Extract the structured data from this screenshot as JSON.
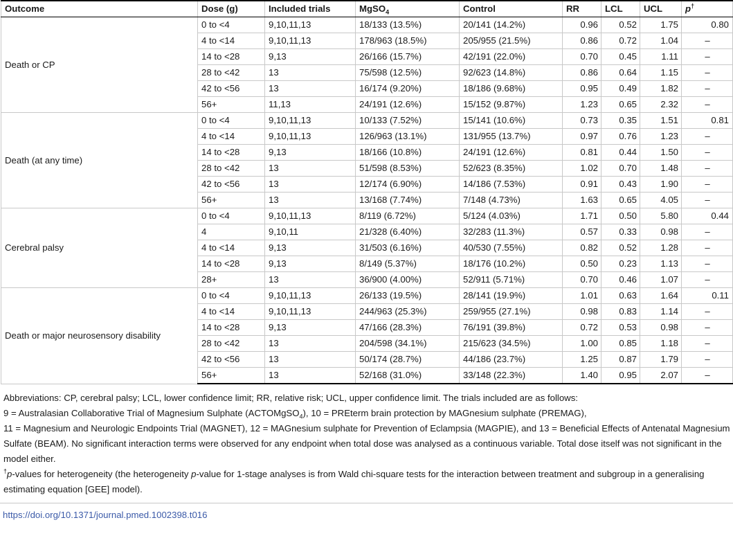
{
  "table": {
    "headers": {
      "outcome": "Outcome",
      "dose": "Dose (g)",
      "trials": "Included trials",
      "mgso4_base": "MgSO",
      "mgso4_sub": "4",
      "control": "Control",
      "rr": "RR",
      "lcl": "LCL",
      "ucl": "UCL",
      "p": "p",
      "p_sup": "†"
    },
    "groups": [
      {
        "outcome": "Death or CP",
        "rows": [
          {
            "dose": "0 to <4",
            "trials": "9,10,11,13",
            "mgso4": "18/133 (13.5%)",
            "control": "20/141 (14.2%)",
            "rr": "0.96",
            "lcl": "0.52",
            "ucl": "1.75",
            "p": "0.80"
          },
          {
            "dose": "4 to <14",
            "trials": "9,10,11,13",
            "mgso4": "178/963 (18.5%)",
            "control": "205/955 (21.5%)",
            "rr": "0.86",
            "lcl": "0.72",
            "ucl": "1.04",
            "p": "–"
          },
          {
            "dose": "14 to <28",
            "trials": "9,13",
            "mgso4": "26/166 (15.7%)",
            "control": "42/191 (22.0%)",
            "rr": "0.70",
            "lcl": "0.45",
            "ucl": "1.11",
            "p": "–"
          },
          {
            "dose": "28 to <42",
            "trials": "13",
            "mgso4": "75/598 (12.5%)",
            "control": "92/623 (14.8%)",
            "rr": "0.86",
            "lcl": "0.64",
            "ucl": "1.15",
            "p": "–"
          },
          {
            "dose": "42 to <56",
            "trials": "13",
            "mgso4": "16/174 (9.20%)",
            "control": "18/186 (9.68%)",
            "rr": "0.95",
            "lcl": "0.49",
            "ucl": "1.82",
            "p": "–"
          },
          {
            "dose": "56+",
            "trials": "11,13",
            "mgso4": "24/191 (12.6%)",
            "control": "15/152 (9.87%)",
            "rr": "1.23",
            "lcl": "0.65",
            "ucl": "2.32",
            "p": "–"
          }
        ]
      },
      {
        "outcome": "Death (at any time)",
        "rows": [
          {
            "dose": "0 to <4",
            "trials": "9,10,11,13",
            "mgso4": "10/133 (7.52%)",
            "control": "15/141 (10.6%)",
            "rr": "0.73",
            "lcl": "0.35",
            "ucl": "1.51",
            "p": "0.81"
          },
          {
            "dose": "4 to <14",
            "trials": "9,10,11,13",
            "mgso4": "126/963 (13.1%)",
            "control": "131/955 (13.7%)",
            "rr": "0.97",
            "lcl": "0.76",
            "ucl": "1.23",
            "p": "–"
          },
          {
            "dose": "14 to <28",
            "trials": "9,13",
            "mgso4": "18/166 (10.8%)",
            "control": "24/191 (12.6%)",
            "rr": "0.81",
            "lcl": "0.44",
            "ucl": "1.50",
            "p": "–"
          },
          {
            "dose": "28 to <42",
            "trials": "13",
            "mgso4": "51/598 (8.53%)",
            "control": "52/623 (8.35%)",
            "rr": "1.02",
            "lcl": "0.70",
            "ucl": "1.48",
            "p": "–"
          },
          {
            "dose": "42 to <56",
            "trials": "13",
            "mgso4": "12/174 (6.90%)",
            "control": "14/186 (7.53%)",
            "rr": "0.91",
            "lcl": "0.43",
            "ucl": "1.90",
            "p": "–"
          },
          {
            "dose": "56+",
            "trials": "13",
            "mgso4": "13/168 (7.74%)",
            "control": "7/148 (4.73%)",
            "rr": "1.63",
            "lcl": "0.65",
            "ucl": "4.05",
            "p": "–"
          }
        ]
      },
      {
        "outcome": "Cerebral palsy",
        "rows": [
          {
            "dose": "0 to <4",
            "trials": "9,10,11,13",
            "mgso4": "8/119 (6.72%)",
            "control": "5/124 (4.03%)",
            "rr": "1.71",
            "lcl": "0.50",
            "ucl": "5.80",
            "p": "0.44"
          },
          {
            "dose": "4",
            "trials": "9,10,11",
            "mgso4": "21/328 (6.40%)",
            "control": "32/283 (11.3%)",
            "rr": "0.57",
            "lcl": "0.33",
            "ucl": "0.98",
            "p": "–"
          },
          {
            "dose": "4 to <14",
            "trials": "9,13",
            "mgso4": "31/503 (6.16%)",
            "control": "40/530 (7.55%)",
            "rr": "0.82",
            "lcl": "0.52",
            "ucl": "1.28",
            "p": "–"
          },
          {
            "dose": "14 to <28",
            "trials": "9,13",
            "mgso4": "8/149 (5.37%)",
            "control": "18/176 (10.2%)",
            "rr": "0.50",
            "lcl": "0.23",
            "ucl": "1.13",
            "p": "–"
          },
          {
            "dose": "28+",
            "trials": "13",
            "mgso4": "36/900 (4.00%)",
            "control": "52/911 (5.71%)",
            "rr": "0.70",
            "lcl": "0.46",
            "ucl": "1.07",
            "p": "–"
          }
        ]
      },
      {
        "outcome": "Death or major neurosensory disability",
        "rows": [
          {
            "dose": "0 to <4",
            "trials": "9,10,11,13",
            "mgso4": "26/133 (19.5%)",
            "control": "28/141 (19.9%)",
            "rr": "1.01",
            "lcl": "0.63",
            "ucl": "1.64",
            "p": "0.11"
          },
          {
            "dose": "4 to <14",
            "trials": "9,10,11,13",
            "mgso4": "244/963 (25.3%)",
            "control": "259/955 (27.1%)",
            "rr": "0.98",
            "lcl": "0.83",
            "ucl": "1.14",
            "p": "–"
          },
          {
            "dose": "14 to <28",
            "trials": "9,13",
            "mgso4": "47/166 (28.3%)",
            "control": "76/191 (39.8%)",
            "rr": "0.72",
            "lcl": "0.53",
            "ucl": "0.98",
            "p": "–"
          },
          {
            "dose": "28 to <42",
            "trials": "13",
            "mgso4": "204/598 (34.1%)",
            "control": "215/623 (34.5%)",
            "rr": "1.00",
            "lcl": "0.85",
            "ucl": "1.18",
            "p": "–"
          },
          {
            "dose": "42 to <56",
            "trials": "13",
            "mgso4": "50/174 (28.7%)",
            "control": "44/186 (23.7%)",
            "rr": "1.25",
            "lcl": "0.87",
            "ucl": "1.79",
            "p": "–"
          },
          {
            "dose": "56+",
            "trials": "13",
            "mgso4": "52/168 (31.0%)",
            "control": "33/148 (22.3%)",
            "rr": "1.40",
            "lcl": "0.95",
            "ucl": "2.07",
            "p": "–"
          }
        ]
      }
    ]
  },
  "notes": {
    "abbrev_line1": "Abbreviations: CP, cerebral palsy; LCL, lower confidence limit; RR, relative risk; UCL, upper confidence limit. The trials included are as follows:",
    "abbrev_line2_a": "9 = Australasian Collaborative Trial of Magnesium Sulphate (ACTOMgSO",
    "abbrev_line2_sub": "4",
    "abbrev_line2_b": "), 10 = PREterm brain protection by MAGnesium sulphate (PREMAG),",
    "abbrev_rest": "11 = Magnesium and Neurologic Endpoints Trial (MAGNET), 12 = MAGnesium sulphate for Prevention of Eclampsia (MAGPIE), and 13 = Beneficial Effects of Antenatal Magnesium Sulfate (BEAM). No significant interaction terms were observed for any endpoint when total dose was analysed as a continuous variable. Total dose itself was not significant in the model either.",
    "footnote_mark": "†",
    "footnote_p": "p",
    "footnote_text_a": "-values for heterogeneity (the heterogeneity ",
    "footnote_p2": "p",
    "footnote_text_b": "-value for 1-stage analyses is from Wald chi-square tests for the interaction between treatment and subgroup in a generalising estimating equation [GEE] model)."
  },
  "doi": "https://doi.org/10.1371/journal.pmed.1002398.t016"
}
